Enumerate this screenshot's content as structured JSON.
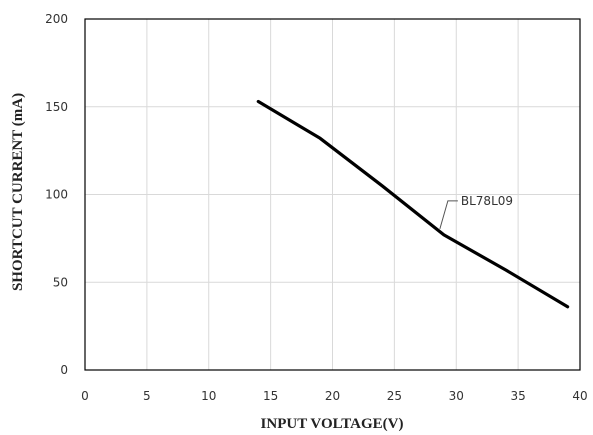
{
  "chart_data": {
    "type": "line",
    "title": "",
    "xlabel": "INPUT VOLTAGE(V)",
    "ylabel": "SHORTCUT CURRENT (mA)",
    "xlim": [
      0,
      40
    ],
    "ylim": [
      0,
      200
    ],
    "x_ticks": [
      "0",
      "5",
      "10",
      "15",
      "20",
      "25",
      "30",
      "35",
      "40"
    ],
    "y_ticks": [
      "0",
      "50",
      "100",
      "150",
      "200"
    ],
    "grid": true,
    "legend": "none",
    "series": [
      {
        "name": "BL78L09",
        "color": "#000000",
        "x": [
          14,
          19,
          24,
          29,
          34,
          39
        ],
        "y": [
          153,
          132,
          105,
          77,
          57,
          36
        ]
      }
    ],
    "annotations": [
      {
        "text": "BL78L09",
        "series": "BL78L09",
        "at_x": 29
      }
    ]
  }
}
